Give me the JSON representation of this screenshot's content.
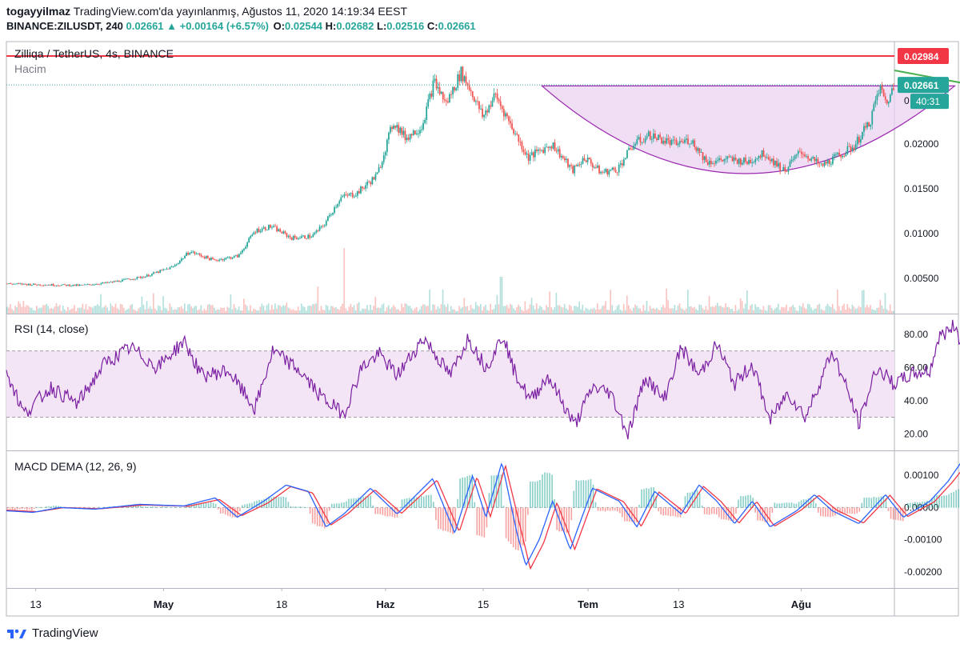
{
  "header": {
    "author": "togayyilmaz",
    "published": "TradingView.com'da yayınlanmış, Ağustos 11, 2020 14:19:34 EEST",
    "symbol": "BINANCE:ZILUSDT, 240",
    "last": "0.02661",
    "change": "▲ +0.00164 (+6.57%)",
    "o_label": "O:",
    "o": "0.02544",
    "h_label": "H:",
    "h": "0.02682",
    "l_label": "L:",
    "l": "0.02516",
    "c_label": "C:",
    "c": "0.02661"
  },
  "panes": {
    "price_title": "Zilliqa / TetherUS, 4s, BINANCE",
    "volume_label": "Hacim",
    "rsi_title": "RSI (14, close)",
    "macd_title": "MACD DEMA (12, 26, 9)"
  },
  "labels": {
    "resistance": "0.02984",
    "current": "0.02661",
    "countdown": "40:31",
    "zero_mark": "0"
  },
  "footer": {
    "brand": "TradingView"
  },
  "colors": {
    "up": "#26a69a",
    "down": "#ef5350",
    "resistance": "#f23645",
    "rsi_line": "#7b1fa2",
    "rsi_band": "#f3e5f5",
    "macd_line": "#2962ff",
    "signal_line": "#f23645",
    "cup_fill": "#e9d3f0",
    "cup_line": "#9c27b0",
    "breakout": "#4caf50"
  },
  "chart_data": [
    {
      "type": "candlestick",
      "title": "Zilliqa / TetherUS, 4s, BINANCE",
      "x_ticks": [
        "13",
        "May",
        "18",
        "Haz",
        "15",
        "Tem",
        "13",
        "Ağu"
      ],
      "y_ticks": [
        "0.02000",
        "0.01500",
        "0.01000",
        "0.00500"
      ],
      "ylim": [
        0.0015,
        0.031
      ],
      "resistance": 0.02984,
      "last": 0.02661,
      "close_path": [
        [
          0,
          0.0044
        ],
        [
          0.035,
          0.0043
        ],
        [
          0.09,
          0.0042
        ],
        [
          0.125,
          0.0045
        ],
        [
          0.17,
          0.0052
        ],
        [
          0.205,
          0.0063
        ],
        [
          0.225,
          0.008
        ],
        [
          0.255,
          0.007
        ],
        [
          0.285,
          0.0075
        ],
        [
          0.305,
          0.0103
        ],
        [
          0.325,
          0.0108
        ],
        [
          0.35,
          0.0095
        ],
        [
          0.375,
          0.0097
        ],
        [
          0.39,
          0.011
        ],
        [
          0.41,
          0.014
        ],
        [
          0.43,
          0.0145
        ],
        [
          0.455,
          0.0165
        ],
        [
          0.475,
          0.0225
        ],
        [
          0.49,
          0.0207
        ],
        [
          0.51,
          0.022
        ],
        [
          0.525,
          0.027
        ],
        [
          0.54,
          0.0245
        ],
        [
          0.558,
          0.028
        ],
        [
          0.57,
          0.026
        ],
        [
          0.585,
          0.023
        ],
        [
          0.6,
          0.0255
        ],
        [
          0.62,
          0.022
        ],
        [
          0.64,
          0.0185
        ],
        [
          0.67,
          0.02
        ],
        [
          0.695,
          0.017
        ],
        [
          0.71,
          0.0185
        ],
        [
          0.73,
          0.0168
        ],
        [
          0.75,
          0.0172
        ],
        [
          0.77,
          0.02
        ],
        [
          0.79,
          0.021
        ],
        [
          0.82,
          0.02
        ],
        [
          0.84,
          0.0205
        ],
        [
          0.86,
          0.018
        ],
        [
          0.885,
          0.0183
        ],
        [
          0.91,
          0.018
        ],
        [
          0.93,
          0.019
        ],
        [
          0.955,
          0.017
        ],
        [
          0.975,
          0.0192
        ],
        [
          1.0,
          0.0175
        ],
        [
          1.02,
          0.0186
        ],
        [
          1.04,
          0.0197
        ],
        [
          1.06,
          0.0225
        ],
        [
          1.072,
          0.0264
        ],
        [
          1.08,
          0.0245
        ],
        [
          1.09,
          0.0266
        ]
      ],
      "cup": {
        "start": [
          0.603,
          0.0265
        ],
        "bottom": [
          0.83,
          0.0167
        ],
        "end": [
          1.068,
          0.0265
        ]
      }
    },
    {
      "type": "line",
      "title": "RSI (14, close)",
      "y_ticks": [
        "80.00",
        "60.00",
        "40.00",
        "20.00"
      ],
      "ylim": [
        10,
        92
      ],
      "band": [
        30,
        70
      ],
      "series": [
        {
          "values": [
            [
              0,
              58
            ],
            [
              0.02,
              32
            ],
            [
              0.05,
              48
            ],
            [
              0.08,
              38
            ],
            [
              0.11,
              62
            ],
            [
              0.14,
              72
            ],
            [
              0.17,
              60
            ],
            [
              0.2,
              76
            ],
            [
              0.22,
              55
            ],
            [
              0.25,
              58
            ],
            [
              0.28,
              35
            ],
            [
              0.3,
              70
            ],
            [
              0.33,
              58
            ],
            [
              0.355,
              42
            ],
            [
              0.38,
              32
            ],
            [
              0.4,
              60
            ],
            [
              0.42,
              68
            ],
            [
              0.44,
              55
            ],
            [
              0.47,
              78
            ],
            [
              0.5,
              55
            ],
            [
              0.52,
              78
            ],
            [
              0.54,
              60
            ],
            [
              0.56,
              80
            ],
            [
              0.57,
              60
            ],
            [
              0.59,
              40
            ],
            [
              0.61,
              55
            ],
            [
              0.63,
              35
            ],
            [
              0.64,
              25
            ],
            [
              0.66,
              48
            ],
            [
              0.68,
              45
            ],
            [
              0.7,
              20
            ],
            [
              0.72,
              55
            ],
            [
              0.74,
              40
            ],
            [
              0.76,
              72
            ],
            [
              0.78,
              55
            ],
            [
              0.8,
              74
            ],
            [
              0.82,
              50
            ],
            [
              0.84,
              62
            ],
            [
              0.86,
              28
            ],
            [
              0.88,
              45
            ],
            [
              0.9,
              30
            ],
            [
              0.93,
              70
            ],
            [
              0.95,
              42
            ],
            [
              0.96,
              26
            ],
            [
              0.98,
              60
            ],
            [
              1.0,
              50
            ],
            [
              1.02,
              56
            ],
            [
              1.04,
              58
            ],
            [
              1.05,
              78
            ],
            [
              1.07,
              86
            ],
            [
              1.08,
              55
            ],
            [
              1.09,
              65
            ]
          ]
        }
      ]
    },
    {
      "type": "line",
      "title": "MACD DEMA (12, 26, 9)",
      "y_ticks": [
        "0.00100",
        "0.00000",
        "-0.00100",
        "-0.00200"
      ],
      "ylim": [
        -0.0023,
        0.0017
      ],
      "series": [
        {
          "values": [
            [
              0,
              -0.0001
            ],
            [
              0.03,
              -0.00015
            ],
            [
              0.06,
              0
            ],
            [
              0.1,
              -5e-05
            ],
            [
              0.15,
              0.0001
            ],
            [
              0.2,
              5e-05
            ],
            [
              0.235,
              0.0003
            ],
            [
              0.26,
              -0.0003
            ],
            [
              0.29,
              0.0002
            ],
            [
              0.315,
              0.0007
            ],
            [
              0.34,
              0.0005
            ],
            [
              0.36,
              -0.0006
            ],
            [
              0.38,
              -0.0002
            ],
            [
              0.41,
              0.0006
            ],
            [
              0.44,
              -0.0002
            ],
            [
              0.48,
              0.0009
            ],
            [
              0.505,
              -0.0008
            ],
            [
              0.525,
              0.001
            ],
            [
              0.54,
              -0.0003
            ],
            [
              0.558,
              0.0014
            ],
            [
              0.575,
              -0.0008
            ],
            [
              0.585,
              -0.0018
            ],
            [
              0.6,
              -0.001
            ],
            [
              0.615,
              0.0002
            ],
            [
              0.635,
              -0.0013
            ],
            [
              0.66,
              0.0006
            ],
            [
              0.69,
              0.0002
            ],
            [
              0.71,
              -0.0006
            ],
            [
              0.73,
              0.0005
            ],
            [
              0.76,
              -0.0002
            ],
            [
              0.78,
              0.0007
            ],
            [
              0.8,
              0.0002
            ],
            [
              0.82,
              -0.0005
            ],
            [
              0.84,
              0.0002
            ],
            [
              0.86,
              -0.0006
            ],
            [
              0.89,
              -0.0001
            ],
            [
              0.91,
              0.0004
            ],
            [
              0.93,
              -0.0001
            ],
            [
              0.96,
              -0.0005
            ],
            [
              0.99,
              0.0004
            ],
            [
              1.01,
              -0.0003
            ],
            [
              1.04,
              0.0002
            ],
            [
              1.06,
              0.0008
            ],
            [
              1.075,
              0.0014
            ],
            [
              1.085,
              -0.0003
            ],
            [
              1.09,
              -0.0002
            ]
          ]
        },
        {
          "values": [
            [
              0,
              -8e-05
            ],
            [
              0.035,
              -0.00013
            ],
            [
              0.065,
              0
            ],
            [
              0.105,
              -4e-05
            ],
            [
              0.155,
              8e-05
            ],
            [
              0.205,
              4e-05
            ],
            [
              0.24,
              0.00025
            ],
            [
              0.265,
              -0.00025
            ],
            [
              0.295,
              0.00015
            ],
            [
              0.32,
              0.00065
            ],
            [
              0.345,
              0.00045
            ],
            [
              0.365,
              -0.00055
            ],
            [
              0.385,
              -0.00018
            ],
            [
              0.415,
              0.00055
            ],
            [
              0.445,
              -0.00018
            ],
            [
              0.485,
              0.00085
            ],
            [
              0.51,
              -0.00075
            ],
            [
              0.53,
              0.00095
            ],
            [
              0.545,
              -0.00028
            ],
            [
              0.562,
              0.0013
            ],
            [
              0.58,
              -0.00075
            ],
            [
              0.59,
              -0.0019
            ],
            [
              0.605,
              -0.0011
            ],
            [
              0.62,
              0.00015
            ],
            [
              0.64,
              -0.0013
            ],
            [
              0.665,
              0.00058
            ],
            [
              0.695,
              0.00018
            ],
            [
              0.715,
              -0.00058
            ],
            [
              0.735,
              0.00048
            ],
            [
              0.765,
              -0.00018
            ],
            [
              0.785,
              0.00066
            ],
            [
              0.805,
              0.00018
            ],
            [
              0.825,
              -0.00048
            ],
            [
              0.845,
              0.00018
            ],
            [
              0.865,
              -0.00058
            ],
            [
              0.895,
              -8e-05
            ],
            [
              0.915,
              0.00038
            ],
            [
              0.935,
              -8e-05
            ],
            [
              0.965,
              -0.00048
            ],
            [
              0.995,
              0.00038
            ],
            [
              1.015,
              -0.00028
            ],
            [
              1.045,
              0.00018
            ],
            [
              1.065,
              0.00078
            ],
            [
              1.08,
              0.0013
            ],
            [
              1.09,
              -0.0002
            ]
          ]
        }
      ]
    }
  ]
}
